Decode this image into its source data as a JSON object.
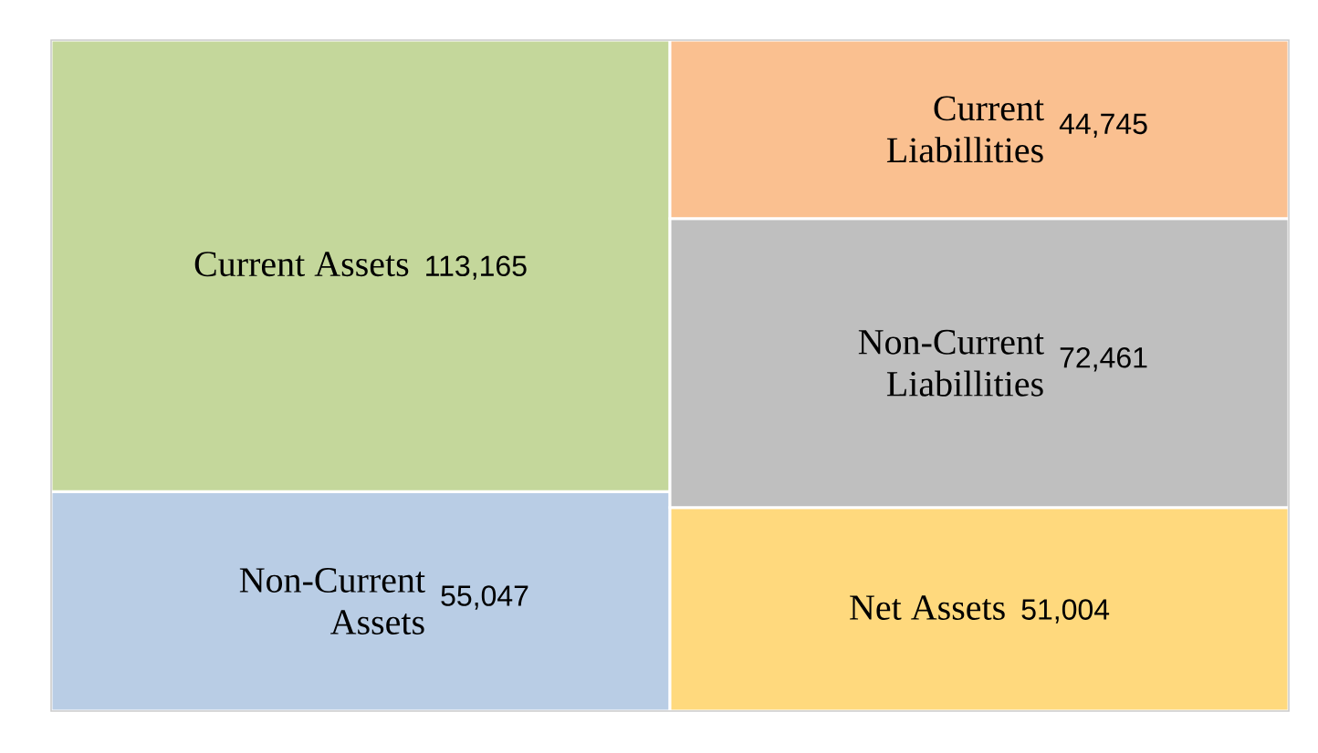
{
  "chart_data": {
    "type": "bar",
    "stacked": true,
    "categories": [
      null,
      null
    ],
    "series": [
      {
        "name": "Non-Current Assets",
        "color": "#b9cde5",
        "values": [
          55047,
          null
        ],
        "value_labels": [
          "55,047",
          null
        ]
      },
      {
        "name": "Net Assets",
        "color": "#ffd97d",
        "values": [
          null,
          51004
        ],
        "value_labels": [
          null,
          "51,004"
        ]
      },
      {
        "name": "Current Assets",
        "color": "#c4d79b",
        "values": [
          113165,
          null
        ],
        "value_labels": [
          "113,165",
          null
        ]
      },
      {
        "name": "Non-Current Liabillities",
        "color": "#bfbfbf",
        "values": [
          null,
          72461
        ],
        "value_labels": [
          null,
          "72,461"
        ]
      },
      {
        "name": "Current Liabillities",
        "color": "#fac090",
        "values": [
          null,
          44745
        ],
        "value_labels": [
          null,
          "44,745"
        ]
      }
    ]
  }
}
